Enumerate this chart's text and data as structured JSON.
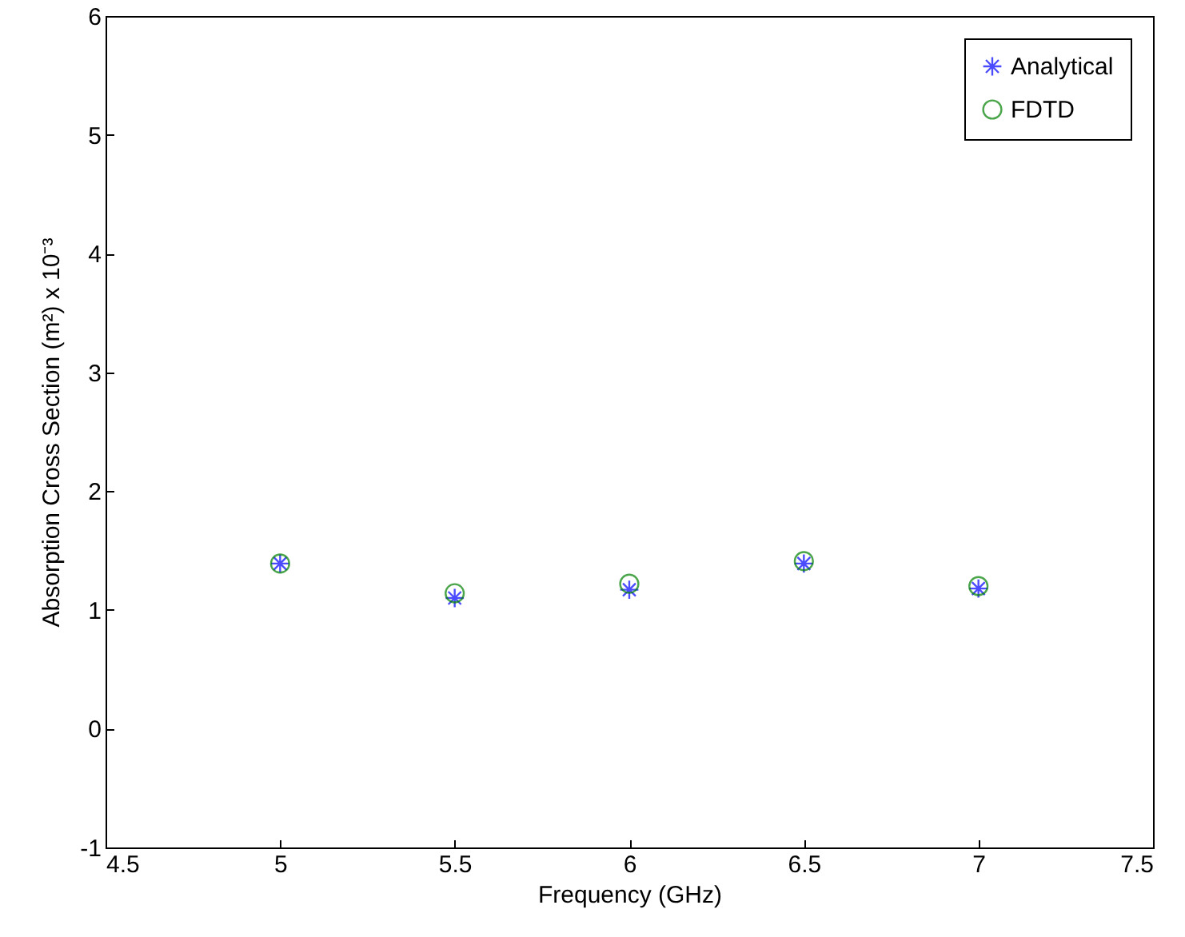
{
  "chart_data": {
    "type": "scatter",
    "xlabel": "Frequency (GHz)",
    "ylabel": "Absorption Cross Section (m²) x 10⁻³",
    "x": [
      5,
      5.5,
      6,
      6.5,
      7
    ],
    "series": [
      {
        "name": "Analytical",
        "color": "#0000ff",
        "marker": "cross",
        "values": [
          1.39,
          1.1,
          1.17,
          1.39,
          1.18
        ]
      },
      {
        "name": "FDTD",
        "color": "#008000",
        "marker": "circle",
        "values": [
          1.39,
          1.14,
          1.22,
          1.41,
          1.2
        ]
      }
    ],
    "xlim": [
      4.5,
      7.5
    ],
    "xticks": [
      4.5,
      5,
      5.5,
      6,
      6.5,
      7,
      7.5
    ],
    "ylim": [
      -1,
      6
    ],
    "yticks": [
      -1,
      0,
      1,
      2,
      3,
      4,
      5,
      6
    ],
    "grid": false,
    "legend": "top right"
  }
}
